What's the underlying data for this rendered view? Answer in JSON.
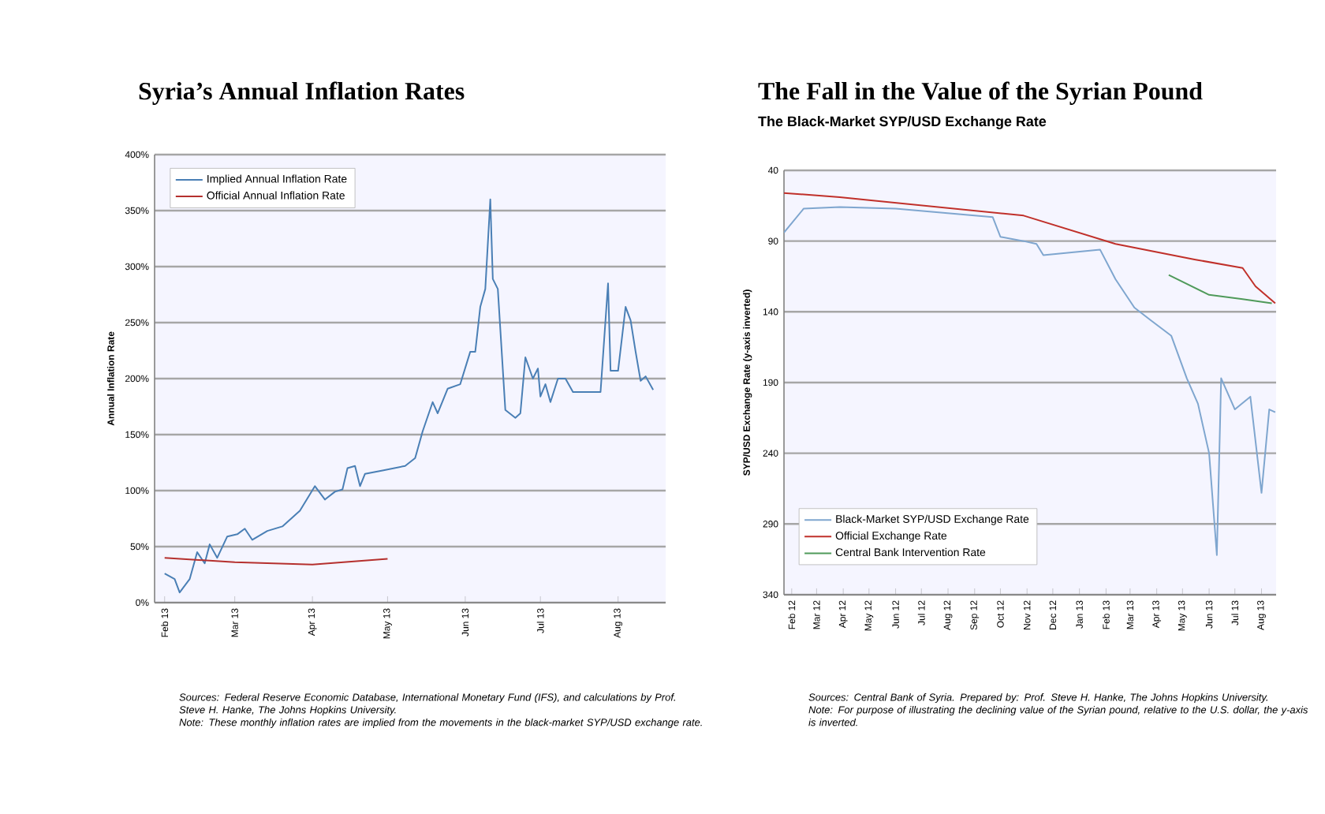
{
  "chart_data": [
    {
      "type": "line",
      "title": "Syria’s Annual Inflation Rates",
      "ylabel": "Annual Inflation Rate",
      "xlim": [
        "2013-01-28",
        "2013-08-20"
      ],
      "xticks": [
        {
          "value": "2013-02-01",
          "label": "Feb 13"
        },
        {
          "value": "2013-03-01",
          "label": "Mar 13"
        },
        {
          "value": "2013-04-01",
          "label": "Apr 13"
        },
        {
          "value": "2013-05-01",
          "label": "May 13"
        },
        {
          "value": "2013-06-01",
          "label": "Jun 13"
        },
        {
          "value": "2013-07-01",
          "label": "Jul 13"
        },
        {
          "value": "2013-08-01",
          "label": "Aug 13"
        }
      ],
      "ylim": [
        0,
        400
      ],
      "yticks": [
        {
          "value": 0,
          "label": "0%"
        },
        {
          "value": 50,
          "label": "50%"
        },
        {
          "value": 100,
          "label": "100%"
        },
        {
          "value": 150,
          "label": "150%"
        },
        {
          "value": 200,
          "label": "200%"
        },
        {
          "value": 250,
          "label": "250%"
        },
        {
          "value": 300,
          "label": "300%"
        },
        {
          "value": 350,
          "label": "350%"
        },
        {
          "value": 400,
          "label": "400%"
        }
      ],
      "grid": "y",
      "legend": "top left",
      "series": [
        {
          "name": "Implied Annual Inflation Rate",
          "color": "#4a7fb5",
          "x": [
            "2013-02-01",
            "2013-02-05",
            "2013-02-07",
            "2013-02-11",
            "2013-02-14",
            "2013-02-17",
            "2013-02-19",
            "2013-02-22",
            "2013-02-26",
            "2013-03-02",
            "2013-03-05",
            "2013-03-08",
            "2013-03-14",
            "2013-03-20",
            "2013-03-27",
            "2013-04-02",
            "2013-04-06",
            "2013-04-10",
            "2013-04-13",
            "2013-04-15",
            "2013-04-18",
            "2013-04-20",
            "2013-04-22",
            "2013-04-29",
            "2013-05-08",
            "2013-05-12",
            "2013-05-15",
            "2013-05-19",
            "2013-05-21",
            "2013-05-25",
            "2013-05-30",
            "2013-06-03",
            "2013-06-05",
            "2013-06-07",
            "2013-06-09",
            "2013-06-11",
            "2013-06-12",
            "2013-06-14",
            "2013-06-17",
            "2013-06-21",
            "2013-06-23",
            "2013-06-25",
            "2013-06-28",
            "2013-06-30",
            "2013-07-01",
            "2013-07-03",
            "2013-07-05",
            "2013-07-08",
            "2013-07-11",
            "2013-07-14",
            "2013-07-25",
            "2013-07-28",
            "2013-07-29",
            "2013-08-01",
            "2013-08-04",
            "2013-08-06",
            "2013-08-08",
            "2013-08-10",
            "2013-08-12",
            "2013-08-15"
          ],
          "values": [
            26,
            21,
            9,
            21,
            45,
            35,
            52,
            40,
            59,
            61,
            66,
            56,
            64,
            68,
            82,
            104,
            92,
            99,
            101,
            120,
            122,
            104,
            115,
            118,
            122,
            129,
            153,
            179,
            169,
            191,
            195,
            224,
            224,
            264,
            280,
            360,
            289,
            280,
            172,
            165,
            169,
            219,
            200,
            209,
            184,
            195,
            179,
            200,
            200,
            188,
            188,
            285,
            207,
            207,
            264,
            252,
            224,
            198,
            202,
            190
          ]
        },
        {
          "name": "Official Annual Inflation Rate",
          "color": "#b5302e",
          "x": [
            "2013-02-01",
            "2013-03-01",
            "2013-04-01",
            "2013-05-01"
          ],
          "values": [
            40,
            36,
            34,
            39
          ]
        }
      ],
      "annotations": [
        "Sources: Federal Reserve Economic Database, International Monetary Fund (IFS), and calculations by Prof. Steve H. Hanke, The Johns Hopkins University.",
        "Note: These monthly inflation rates are implied from the movements in the black-market SYP/USD exchange rate."
      ]
    },
    {
      "type": "line",
      "title": "The Fall in the Value of the Syrian Pound",
      "subtitle": "The Black-Market SYP/USD Exchange Rate",
      "ylabel": "SYP/USD Exchange Rate (y-axis inverted)",
      "xlim": [
        "2012-01-23",
        "2013-08-18"
      ],
      "xticks": [
        {
          "value": "2012-02-01",
          "label": "Feb 12"
        },
        {
          "value": "2012-03-01",
          "label": "Mar 12"
        },
        {
          "value": "2012-04-01",
          "label": "Apr 12"
        },
        {
          "value": "2012-05-01",
          "label": "May 12"
        },
        {
          "value": "2012-06-01",
          "label": "Jun 12"
        },
        {
          "value": "2012-07-01",
          "label": "Jul 12"
        },
        {
          "value": "2012-08-01",
          "label": "Aug 12"
        },
        {
          "value": "2012-09-01",
          "label": "Sep 12"
        },
        {
          "value": "2012-10-01",
          "label": "Oct 12"
        },
        {
          "value": "2012-11-01",
          "label": "Nov 12"
        },
        {
          "value": "2012-12-01",
          "label": "Dec 12"
        },
        {
          "value": "2013-01-01",
          "label": "Jan 13"
        },
        {
          "value": "2013-02-01",
          "label": "Feb 13"
        },
        {
          "value": "2013-03-01",
          "label": "Mar 13"
        },
        {
          "value": "2013-04-01",
          "label": "Apr 13"
        },
        {
          "value": "2013-05-01",
          "label": "May 13"
        },
        {
          "value": "2013-06-01",
          "label": "Jun 13"
        },
        {
          "value": "2013-07-01",
          "label": "Jul 13"
        },
        {
          "value": "2013-08-01",
          "label": "Aug 13"
        }
      ],
      "ylim": [
        340,
        40
      ],
      "yticks": [
        40,
        90,
        140,
        190,
        240,
        290,
        340
      ],
      "grid": "y",
      "legend": "bottom left",
      "series": [
        {
          "name": "Black-Market SYP/USD Exchange Rate",
          "color": "#7fa6cf",
          "x": [
            "2012-01-23",
            "2012-02-15",
            "2012-03-28",
            "2012-06-01",
            "2012-09-22",
            "2012-10-01",
            "2012-10-28",
            "2012-11-12",
            "2012-11-20",
            "2013-01-25",
            "2013-02-12",
            "2013-03-06",
            "2013-03-25",
            "2013-04-18",
            "2013-05-06",
            "2013-05-19",
            "2013-06-01",
            "2013-06-10",
            "2013-06-15",
            "2013-07-01",
            "2013-07-19",
            "2013-08-01",
            "2013-08-10",
            "2013-08-17"
          ],
          "values": [
            84,
            67,
            66,
            67,
            73,
            87,
            90,
            92,
            100,
            96,
            117,
            137,
            146,
            157,
            187,
            205,
            240,
            312,
            187,
            209,
            200,
            268,
            209,
            211
          ]
        },
        {
          "name": "Official Exchange Rate",
          "color": "#c0302a",
          "x": [
            "2012-01-23",
            "2012-03-28",
            "2012-10-28",
            "2013-02-12",
            "2013-05-15",
            "2013-07-10",
            "2013-07-25",
            "2013-08-17"
          ],
          "values": [
            56,
            59,
            72,
            92,
            103,
            109,
            122,
            134
          ]
        },
        {
          "name": "Central Bank Intervention Rate",
          "color": "#4f9a5a",
          "x": [
            "2013-04-15",
            "2013-06-01",
            "2013-07-10",
            "2013-08-13"
          ],
          "values": [
            114,
            128,
            131,
            134
          ]
        }
      ],
      "annotations": [
        "Sources: Central Bank of Syria. Prepared by: Prof. Steve H. Hanke, The Johns Hopkins University.",
        "Note: For purpose of illustrating the declining value of the Syrian pound, relative to the U.S. dollar, the y-axis is inverted."
      ]
    }
  ]
}
